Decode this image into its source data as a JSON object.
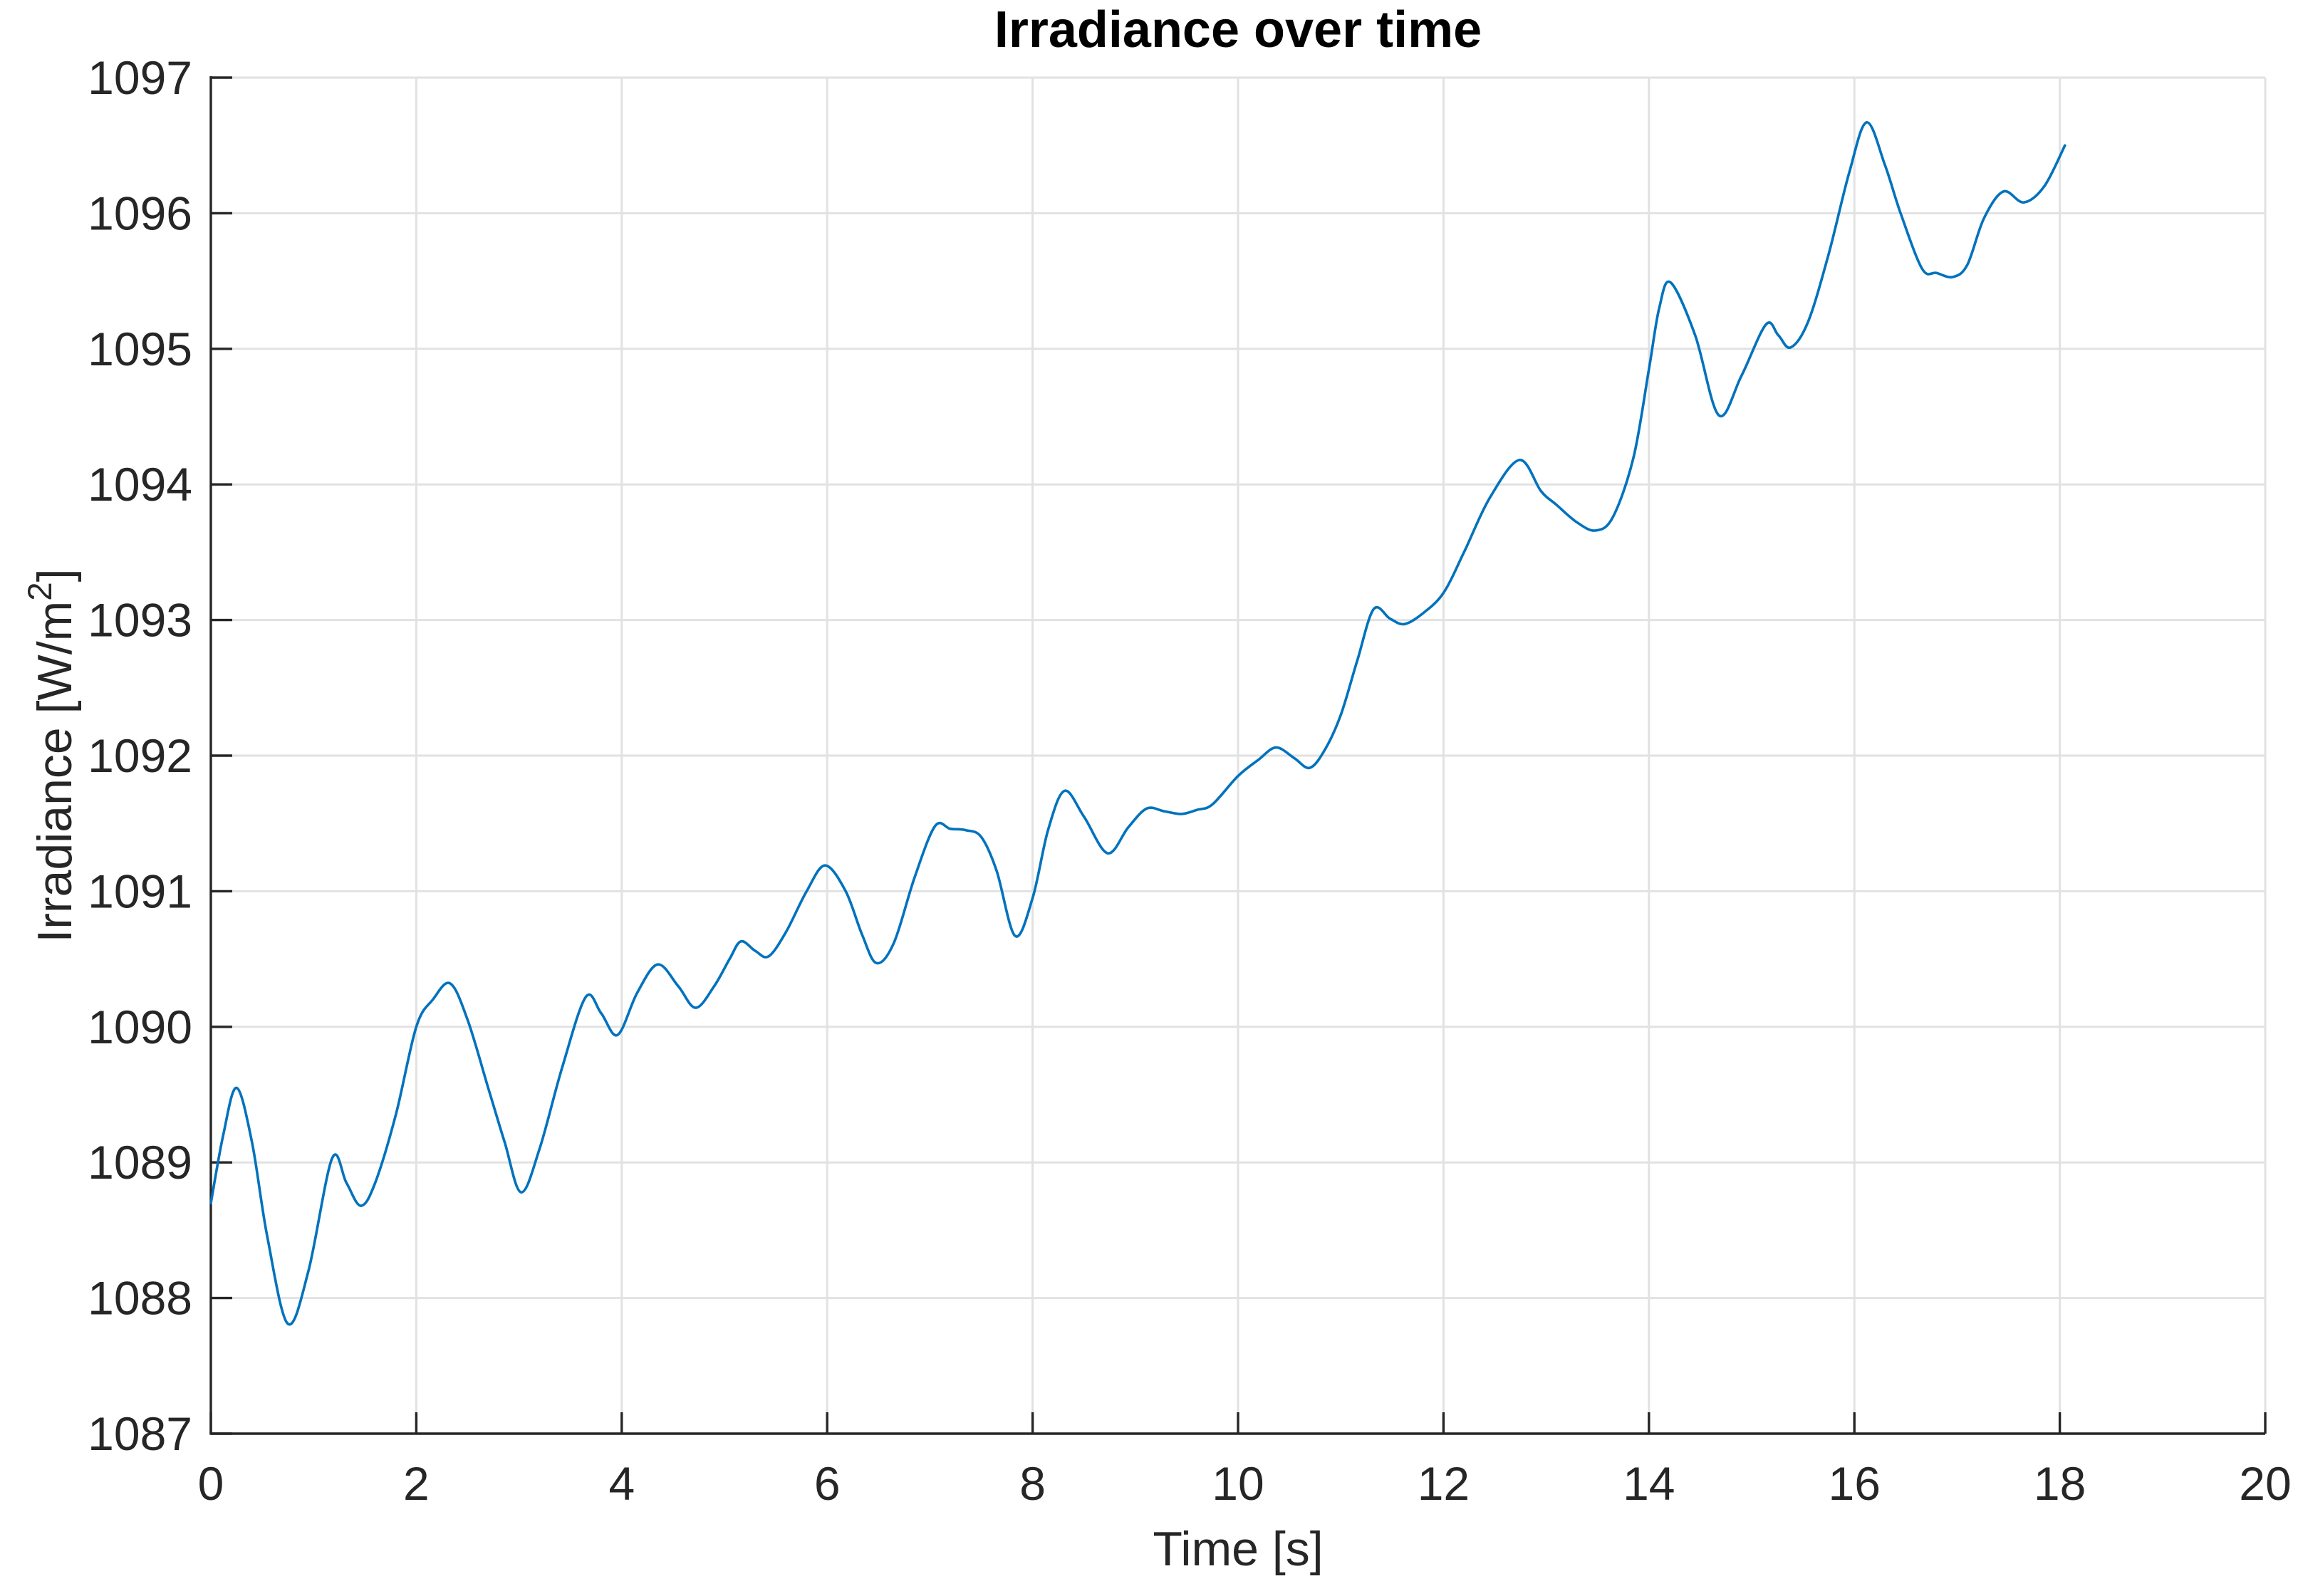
{
  "title": "Irradiance over time",
  "colors": {
    "line": "#0072BD",
    "grid": "#e2e2e2",
    "axis": "#262626",
    "text": "#262626",
    "title_text": "#000000",
    "background": "#ffffff"
  },
  "chart_data": {
    "type": "line",
    "title": "Irradiance over time",
    "xlabel": "Time [s]",
    "ylabel": "Irradiance [W/m2]",
    "ylabel_parts": {
      "main": "Irradiance [W/m",
      "sup": "2",
      "close": "]"
    },
    "xlim": [
      0,
      20
    ],
    "ylim": [
      1087,
      1097
    ],
    "xticks": [
      0,
      2,
      4,
      6,
      8,
      10,
      12,
      14,
      16,
      18,
      20
    ],
    "yticks": [
      1087,
      1088,
      1089,
      1090,
      1091,
      1092,
      1093,
      1094,
      1095,
      1096,
      1097
    ],
    "grid": true,
    "legend": "none",
    "line_color": "#0072BD",
    "series": [
      {
        "name": "irradiance",
        "x": [
          0.0,
          0.12,
          0.25,
          0.4,
          0.55,
          0.75,
          0.95,
          1.18,
          1.32,
          1.46,
          1.6,
          1.8,
          2.0,
          2.16,
          2.33,
          2.5,
          2.7,
          2.86,
          3.02,
          3.2,
          3.42,
          3.65,
          3.8,
          3.96,
          4.15,
          4.35,
          4.55,
          4.72,
          4.9,
          5.05,
          5.16,
          5.3,
          5.43,
          5.6,
          5.8,
          5.98,
          6.18,
          6.34,
          6.48,
          6.65,
          6.85,
          7.05,
          7.2,
          7.35,
          7.5,
          7.65,
          7.83,
          8.0,
          8.15,
          8.31,
          8.5,
          8.73,
          8.93,
          9.11,
          9.28,
          9.45,
          9.6,
          9.75,
          10.0,
          10.2,
          10.37,
          10.55,
          10.7,
          10.85,
          11.0,
          11.16,
          11.32,
          11.48,
          11.62,
          11.8,
          12.0,
          12.2,
          12.45,
          12.74,
          12.95,
          13.1,
          13.3,
          13.48,
          13.65,
          13.85,
          14.0,
          14.1,
          14.21,
          14.45,
          14.68,
          14.9,
          15.14,
          15.26,
          15.38,
          15.55,
          15.75,
          15.95,
          16.12,
          16.3,
          16.45,
          16.66,
          16.8,
          16.96,
          17.1,
          17.26,
          17.45,
          17.65,
          17.85,
          18.05
        ],
        "y": [
          1088.7,
          1089.2,
          1089.55,
          1089.15,
          1088.45,
          1087.81,
          1088.2,
          1089.03,
          1088.85,
          1088.68,
          1088.85,
          1089.35,
          1090.0,
          1090.2,
          1090.32,
          1090.05,
          1089.55,
          1089.15,
          1088.78,
          1089.1,
          1089.7,
          1090.22,
          1090.1,
          1089.94,
          1090.25,
          1090.46,
          1090.3,
          1090.14,
          1090.3,
          1090.5,
          1090.63,
          1090.56,
          1090.52,
          1090.7,
          1091.0,
          1091.19,
          1091.0,
          1090.68,
          1090.47,
          1090.62,
          1091.1,
          1091.48,
          1091.46,
          1091.45,
          1091.4,
          1091.15,
          1090.67,
          1090.95,
          1091.45,
          1091.74,
          1091.55,
          1091.28,
          1091.47,
          1091.61,
          1091.59,
          1091.57,
          1091.6,
          1091.64,
          1091.85,
          1091.97,
          1092.06,
          1091.98,
          1091.91,
          1092.05,
          1092.3,
          1092.7,
          1093.08,
          1093.01,
          1092.97,
          1093.05,
          1093.2,
          1093.5,
          1093.9,
          1094.18,
          1093.95,
          1093.85,
          1093.72,
          1093.66,
          1093.76,
          1094.2,
          1094.85,
          1095.3,
          1095.49,
          1095.1,
          1094.51,
          1094.8,
          1095.18,
          1095.1,
          1095.01,
          1095.2,
          1095.7,
          1096.3,
          1096.67,
          1096.35,
          1096.0,
          1095.59,
          1095.56,
          1095.53,
          1095.62,
          1095.96,
          1096.16,
          1096.08,
          1096.2,
          1096.5
        ]
      }
    ]
  }
}
